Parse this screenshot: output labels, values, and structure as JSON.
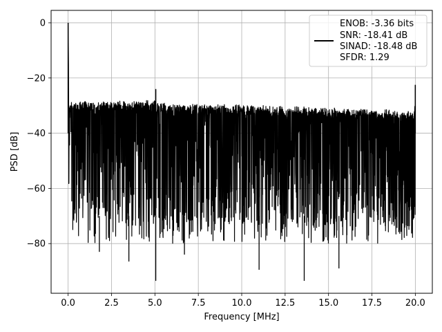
{
  "chart_data": {
    "type": "line",
    "title": "",
    "xlabel": "Frequency [MHz]",
    "ylabel": "PSD [dB]",
    "xlim": [
      -0.98,
      20.98
    ],
    "ylim": [
      -98,
      4.5
    ],
    "xticks": [
      0.0,
      2.5,
      5.0,
      7.5,
      10.0,
      12.5,
      15.0,
      17.5,
      20.0
    ],
    "xtick_labels": [
      "0.0",
      "2.5",
      "5.0",
      "7.5",
      "10.0",
      "12.5",
      "15.0",
      "17.5",
      "20.0"
    ],
    "yticks": [
      0,
      -20,
      -40,
      -60,
      -80
    ],
    "ytick_labels": [
      "0",
      "−20",
      "−40",
      "−60",
      "−80"
    ],
    "grid": true,
    "legend_position": "top-right",
    "series": [
      {
        "name": "",
        "color": "#000000",
        "description_points": {
          "x": [
            0.0,
            0.05,
            0.1,
            0.2,
            0.5,
            1.0,
            2.0,
            5.0,
            5.05,
            7.5,
            10.0,
            12.5,
            15.0,
            17.5,
            19.95,
            20.0
          ],
          "y": [
            0.0,
            -18,
            -23,
            -26,
            -27,
            -28,
            -28.5,
            -24,
            -28.5,
            -29,
            -29.5,
            -30,
            -30.5,
            -31,
            -31.5,
            -22.5
          ]
        },
        "noise_floor_top": -28,
        "noise_floor_bottom": -70,
        "deep_spikes": [
          {
            "x": 5.05,
            "y": -93.5
          },
          {
            "x": 13.6,
            "y": -93.5
          },
          {
            "x": 15.6,
            "y": -89
          },
          {
            "x": 3.5,
            "y": -86.5
          },
          {
            "x": 11.0,
            "y": -89.5
          },
          {
            "x": 1.8,
            "y": -83
          },
          {
            "x": 6.7,
            "y": -84
          }
        ]
      }
    ],
    "legend_entries": [
      "ENOB: -3.36 bits",
      "SNR: -18.41 dB",
      "SINAD: -18.48 dB",
      "SFDR: 1.29"
    ],
    "legend_line_color": "#000000"
  }
}
